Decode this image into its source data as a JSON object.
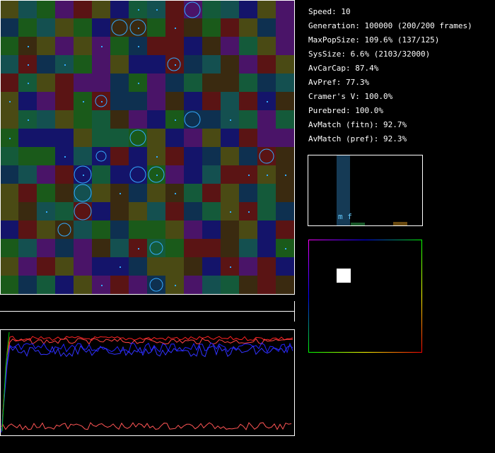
{
  "stats": [
    "Speed: 10",
    "Generation: 100000 (200/200 frames)",
    "MaxPopSize: 109.6% (137/125)",
    "SysSize: 6.6% (2103/32000)",
    "AvCarCap: 87.4%",
    "AvPref: 77.3%",
    "Cramer's V: 100.0%",
    "Purebred: 100.0%",
    "AvMatch (fitn): 92.7%",
    "AvMatch (pref): 92.3%"
  ],
  "histogram": {
    "label": "m f"
  }
}
